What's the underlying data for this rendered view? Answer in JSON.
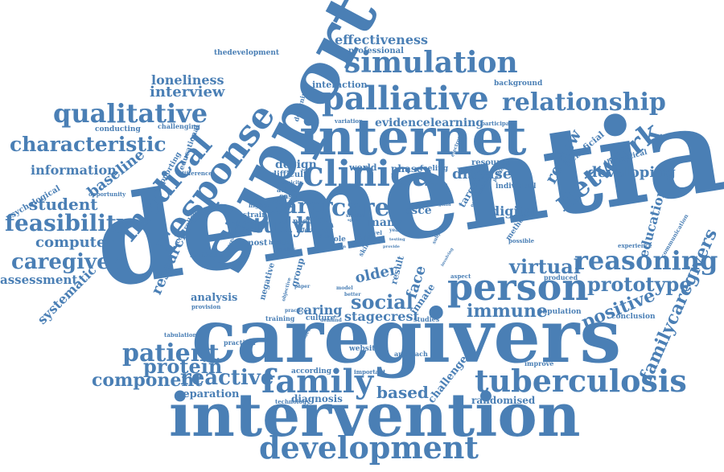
{
  "accent_color": "#4a7fb5",
  "background_color": "#ffffff",
  "words": {
    "dementia": "dementia",
    "caregivers": "caregivers",
    "intervention": "intervention",
    "support": "support",
    "internet": "internet",
    "development": "development",
    "palliative": "palliative",
    "simulation": "simulation",
    "clinical": "clinical",
    "person": "person",
    "response": "response",
    "tuberculosis": "tuberculosis",
    "reasoning": "reasoning",
    "family": "family",
    "relationship": "relationship",
    "qualitative": "qualitative",
    "network": "network",
    "medical": "medical",
    "feasibility": "feasibility",
    "carer": "carer",
    "care": "care",
    "patient": "patient",
    "caregiver": "caregiver",
    "characteristic": "characteristic",
    "prototype": "prototype",
    "virtual": "virtual",
    "reactive": "reactive",
    "study": "study",
    "social": "social",
    "life": "life",
    "protein": "protein",
    "component": "component",
    "familycaregivers": "familycaregivers",
    "positive": "positive",
    "immune": "immune",
    "based": "based",
    "effectiveness": "effectiveness",
    "loneliness": "loneliness",
    "interview": "interview",
    "student": "student",
    "computer": "computer",
    "information": "information",
    "baseline": "baseline",
    "developing": "developing",
    "review": "review",
    "research": "research",
    "education": "education",
    "assessment": "assessment",
    "systematic": "systematic",
    "analysis": "analysis",
    "stagecrest": "stagecrest",
    "caring": "caring",
    "face": "face",
    "older": "older",
    "disease": "disease",
    "digital": "digital",
    "separation": "separation",
    "challenge": "challenge",
    "randomised": "randomised",
    "diagnosis": "diagnosis",
    "evidence": "evidence",
    "learning": "learning",
    "design": "design",
    "osce": "osce",
    "many": "many",
    "professional": "professional",
    "thedevelopment": "thedevelopment",
    "interaction": "interaction",
    "background": "background",
    "beneficial": "beneficial",
    "theoretical": "theoretical",
    "conducting": "conducting",
    "challenging": "challenging",
    "psychological": "psychological",
    "opportunity": "opportunity",
    "supporting": "supporting",
    "educational": "educational",
    "difference": "difference",
    "difficult": "difficult",
    "world": "world",
    "phase": "phase",
    "feeling": "feeling",
    "resource": "resource",
    "target": "target",
    "individual": "individual",
    "strain": "strain",
    "need": "need",
    "most": "most",
    "health": "health",
    "role": "role",
    "group": "group",
    "result": "result",
    "innate": "innate",
    "synthesis": "synthesis",
    "provision": "provision",
    "tabulation": "tabulation",
    "practical": "practical",
    "training": "training",
    "culture": "culture",
    "negative": "negative",
    "website": "website",
    "approach": "approach",
    "studies": "studies",
    "according": "according",
    "important": "important",
    "technology": "technology",
    "improve": "improve",
    "population": "population",
    "conclusion": "conclusion",
    "produced": "produced",
    "experience": "experience",
    "communication": "communication",
    "method": "method",
    "possible": "possible",
    "aspect": "aspect",
    "designing": "designing",
    "variation": "variation",
    "participant": "participant",
    "higher": "higher",
    "active": "active",
    "case": "case",
    "type": "type",
    "controlled": "controlled",
    "ethnicity": "ethnicity",
    "paper": "paper",
    "model": "model",
    "better": "better",
    "novel": "novel",
    "year": "year",
    "subject": "subject",
    "effect": "effect",
    "data": "data",
    "skill": "skill",
    "quality": "quality",
    "demand": "demand",
    "contact": "contact",
    "practice": "practice",
    "objective": "objective",
    "similar": "similar",
    "particular": "particular",
    "examination": "examination",
    "electronic": "electronic",
    "england": "england",
    "treatment": "treatment",
    "provide": "provide",
    "burden": "burden",
    "space": "space",
    "testing": "testing",
    "involving": "involving"
  }
}
